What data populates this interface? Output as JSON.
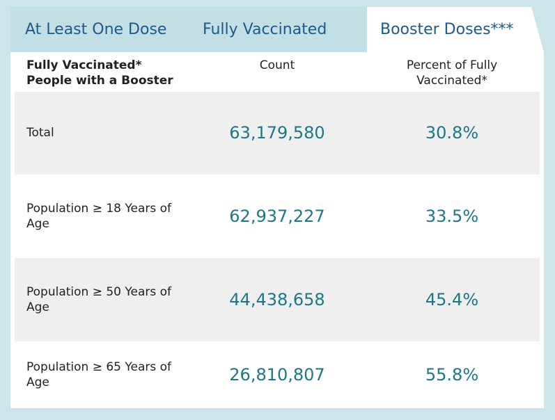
{
  "tabs": [
    "At Least One Dose",
    "Fully Vaccinated",
    "Booster Doses***"
  ],
  "active_tab": 2,
  "table": {
    "header": [
      "Fully Vaccinated* People with a Booster",
      "Count",
      "Percent of Fully Vaccinated*"
    ],
    "rows": [
      [
        "Total",
        "63,179,580",
        "30.8%"
      ],
      [
        "Population ≥ 18 Years of Age",
        "62,937,227",
        "33.5%"
      ],
      [
        "Population ≥ 50 Years of Age",
        "44,438,658",
        "45.4%"
      ],
      [
        "Population ≥ 65 Years of Age",
        "26,810,807",
        "55.8%"
      ]
    ]
  }
}
